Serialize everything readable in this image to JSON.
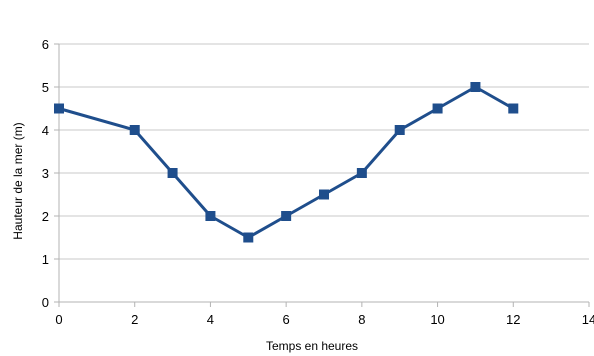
{
  "chart_data": {
    "type": "line",
    "title": "",
    "xlabel": "Temps en heures",
    "ylabel": "Hauteur de la mer (m)",
    "xlim": [
      0,
      14
    ],
    "ylim": [
      0,
      6
    ],
    "x_ticks": [
      "0",
      "2",
      "4",
      "6",
      "8",
      "10",
      "12",
      "14"
    ],
    "y_ticks": [
      "0",
      "1",
      "2",
      "3",
      "4",
      "5",
      "6"
    ],
    "grid": "horizontal",
    "legend": "none",
    "series": [
      {
        "x": [
          0,
          2,
          3,
          4,
          5,
          6,
          7,
          8,
          9,
          10,
          11,
          12
        ],
        "y": [
          4.5,
          4,
          3,
          2,
          1.5,
          2,
          2.5,
          3,
          4,
          4.5,
          5,
          4.5
        ],
        "color": "#1f4e8c",
        "marker": "square"
      }
    ],
    "colors": {
      "grid": "#c8c8c8",
      "axis": "#b3b3b3",
      "line": "#1f4e8c"
    }
  }
}
